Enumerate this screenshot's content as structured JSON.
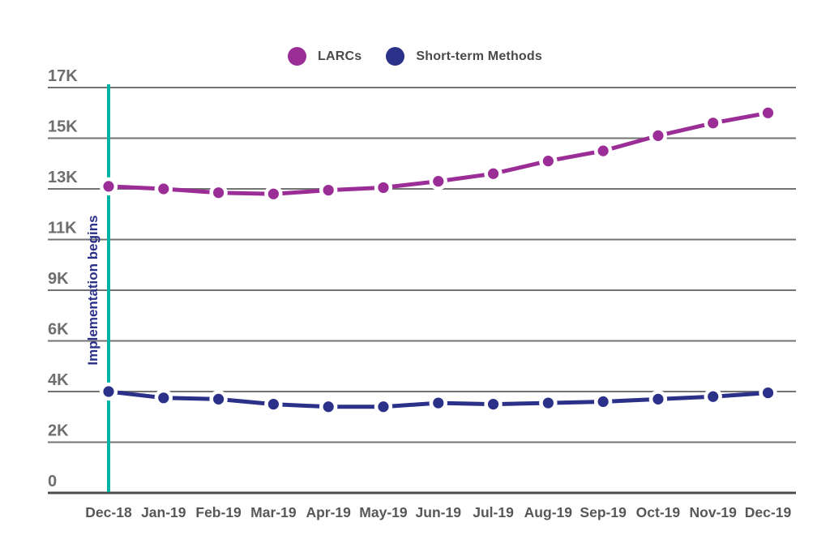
{
  "chart_data": {
    "type": "line",
    "title": "",
    "categories": [
      "Dec-18",
      "Jan-19",
      "Feb-19",
      "Mar-19",
      "Apr-19",
      "May-19",
      "Jun-19",
      "Jul-19",
      "Aug-19",
      "Sep-19",
      "Oct-19",
      "Nov-19",
      "Dec-19"
    ],
    "series": [
      {
        "name": "LARCs",
        "color": "#9B2D97",
        "values": [
          13100,
          13000,
          12850,
          12800,
          12950,
          13050,
          13300,
          13600,
          14100,
          14500,
          15100,
          15600,
          16000
        ]
      },
      {
        "name": "Short-term Methods",
        "color": "#2B3089",
        "values": [
          4000,
          3750,
          3700,
          3500,
          3400,
          3400,
          3550,
          3500,
          3550,
          3600,
          3700,
          3800,
          3950
        ]
      }
    ],
    "y_axis": {
      "tick_labels": [
        "0",
        "2K",
        "4K",
        "6K",
        "9K",
        "11K",
        "13K",
        "15K",
        "17K"
      ],
      "tick_values": [
        0,
        2000,
        4000,
        6000,
        9000,
        11000,
        13000,
        15000,
        17000
      ]
    },
    "annotation": {
      "label": "Implementation begins",
      "at_category": "Dec-18",
      "line_color": "#00B3A4",
      "label_color": "#2B3089"
    },
    "legend_position": "top",
    "grid": true,
    "marker": {
      "ring_color": "#FFFFFF"
    }
  },
  "styles": {
    "background": "#FFFFFF",
    "grid_color": "#737373",
    "axis_color": "#4D4D4D",
    "y_label_color": "#6E6E6E",
    "x_label_color": "#575757",
    "legend_text_color": "#4A4A4A"
  }
}
